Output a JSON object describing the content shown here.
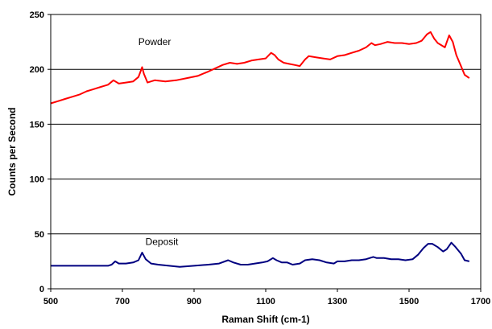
{
  "chart_data": {
    "type": "line",
    "title": "",
    "xlabel": "Raman Shift (cm-1)",
    "ylabel": "Counts per Second",
    "xlim": [
      500,
      1700
    ],
    "ylim": [
      0,
      250
    ],
    "x_ticks": [
      500,
      700,
      900,
      1100,
      1300,
      1500,
      1700
    ],
    "y_ticks": [
      0,
      50,
      100,
      150,
      200,
      250
    ],
    "grid": "horizontal",
    "legend": "none",
    "annotations": [
      {
        "text": "Powder",
        "x": 790,
        "y": 222
      },
      {
        "text": "Deposit",
        "x": 810,
        "y": 40
      }
    ],
    "series": [
      {
        "color": "#ff0000",
        "x": [
          500,
          520,
          540,
          560,
          580,
          600,
          620,
          640,
          660,
          675,
          690,
          710,
          730,
          745,
          755,
          760,
          770,
          790,
          820,
          850,
          880,
          910,
          940,
          960,
          980,
          1000,
          1020,
          1040,
          1060,
          1080,
          1100,
          1115,
          1125,
          1135,
          1150,
          1165,
          1180,
          1195,
          1210,
          1220,
          1240,
          1260,
          1280,
          1300,
          1320,
          1340,
          1360,
          1380,
          1395,
          1405,
          1420,
          1440,
          1460,
          1480,
          1500,
          1520,
          1535,
          1550,
          1560,
          1570,
          1580,
          1600,
          1612,
          1622,
          1632,
          1645,
          1655,
          1668
        ],
        "values": [
          169,
          171,
          173,
          175,
          177,
          180,
          182,
          184,
          186,
          190,
          187,
          188,
          189,
          193,
          202,
          196,
          188,
          190,
          189,
          190,
          192,
          194,
          198,
          201,
          204,
          206,
          205,
          206,
          208,
          209,
          210,
          215,
          213,
          209,
          206,
          205,
          204,
          203,
          209,
          212,
          211,
          210,
          209,
          212,
          213,
          215,
          217,
          220,
          224,
          222,
          223,
          225,
          224,
          224,
          223,
          224,
          226,
          232,
          234,
          228,
          224,
          220,
          231,
          225,
          213,
          203,
          195,
          192
        ]
      },
      {
        "color": "#000080",
        "x": [
          500,
          520,
          540,
          560,
          580,
          600,
          620,
          640,
          660,
          670,
          680,
          690,
          710,
          730,
          745,
          755,
          765,
          780,
          800,
          830,
          860,
          900,
          940,
          970,
          995,
          1010,
          1030,
          1050,
          1070,
          1090,
          1105,
          1120,
          1130,
          1145,
          1160,
          1175,
          1195,
          1210,
          1230,
          1250,
          1270,
          1290,
          1300,
          1320,
          1340,
          1360,
          1380,
          1400,
          1410,
          1430,
          1450,
          1470,
          1490,
          1510,
          1525,
          1540,
          1553,
          1565,
          1580,
          1595,
          1605,
          1618,
          1630,
          1645,
          1655,
          1668
        ],
        "values": [
          21,
          21,
          21,
          21,
          21,
          21,
          21,
          21,
          21,
          22,
          25,
          23,
          23,
          24,
          26,
          33,
          27,
          23,
          22,
          21,
          20,
          21,
          22,
          23,
          26,
          24,
          22,
          22,
          23,
          24,
          25,
          28,
          26,
          24,
          24,
          22,
          23,
          26,
          27,
          26,
          24,
          23,
          25,
          25,
          26,
          26,
          27,
          29,
          28,
          28,
          27,
          27,
          26,
          27,
          31,
          37,
          41,
          41,
          38,
          34,
          36,
          42,
          38,
          32,
          26,
          25
        ]
      }
    ]
  }
}
